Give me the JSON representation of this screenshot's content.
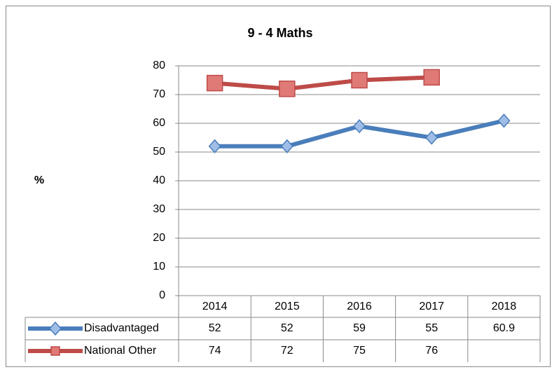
{
  "chart_data": {
    "type": "line",
    "title": "9 - 4 Maths",
    "y_label": "%",
    "categories": [
      "2014",
      "2015",
      "2016",
      "2017",
      "2018"
    ],
    "series": [
      {
        "name": "Disadvantaged",
        "color": "#4a7ebb",
        "marker": "diamond",
        "values": [
          52,
          52,
          59,
          55,
          60.9
        ]
      },
      {
        "name": "National Other",
        "color": "#be4b48",
        "marker": "square",
        "values": [
          74,
          72,
          75,
          76,
          null
        ]
      }
    ],
    "ylim": [
      0,
      80
    ],
    "yticks": [
      0,
      10,
      20,
      30,
      40,
      50,
      60,
      70,
      80
    ],
    "grid": true,
    "data_table": true
  }
}
